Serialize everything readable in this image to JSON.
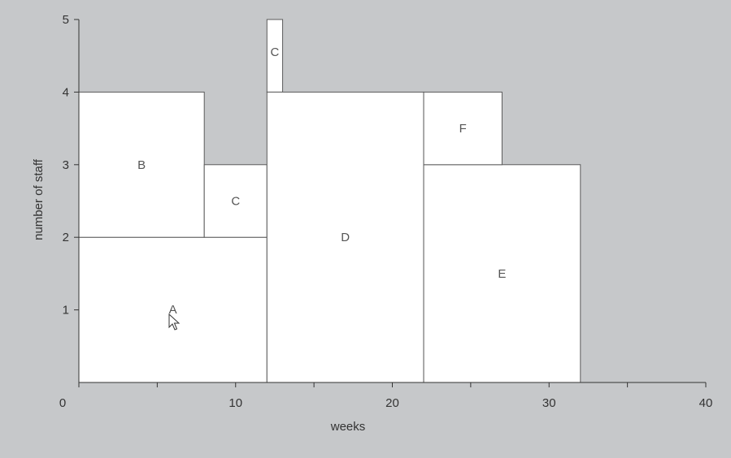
{
  "chart_data": {
    "type": "bar",
    "xlabel": "weeks",
    "ylabel": "number of staff",
    "xlim": [
      0,
      40
    ],
    "ylim": [
      0,
      5
    ],
    "xticks": [
      0,
      10,
      20,
      30,
      40
    ],
    "yticks": [
      1,
      2,
      3,
      4,
      5
    ],
    "grid": false,
    "blocks": [
      {
        "label": "A",
        "x_start": 0,
        "x_end": 12,
        "y_bottom": 0,
        "y_top": 2
      },
      {
        "label": "B",
        "x_start": 0,
        "x_end": 8,
        "y_bottom": 2,
        "y_top": 4
      },
      {
        "label": "C",
        "x_start": 8,
        "x_end": 12,
        "y_bottom": 2,
        "y_top": 3
      },
      {
        "label": "C",
        "x_start": 12,
        "x_end": 13,
        "y_bottom": 4,
        "y_top": 5
      },
      {
        "label": "D",
        "x_start": 12,
        "x_end": 22,
        "y_bottom": 0,
        "y_top": 4
      },
      {
        "label": "E",
        "x_start": 22,
        "x_end": 32,
        "y_bottom": 0,
        "y_top": 3
      },
      {
        "label": "F",
        "x_start": 22,
        "x_end": 27,
        "y_bottom": 3,
        "y_top": 4
      }
    ]
  }
}
